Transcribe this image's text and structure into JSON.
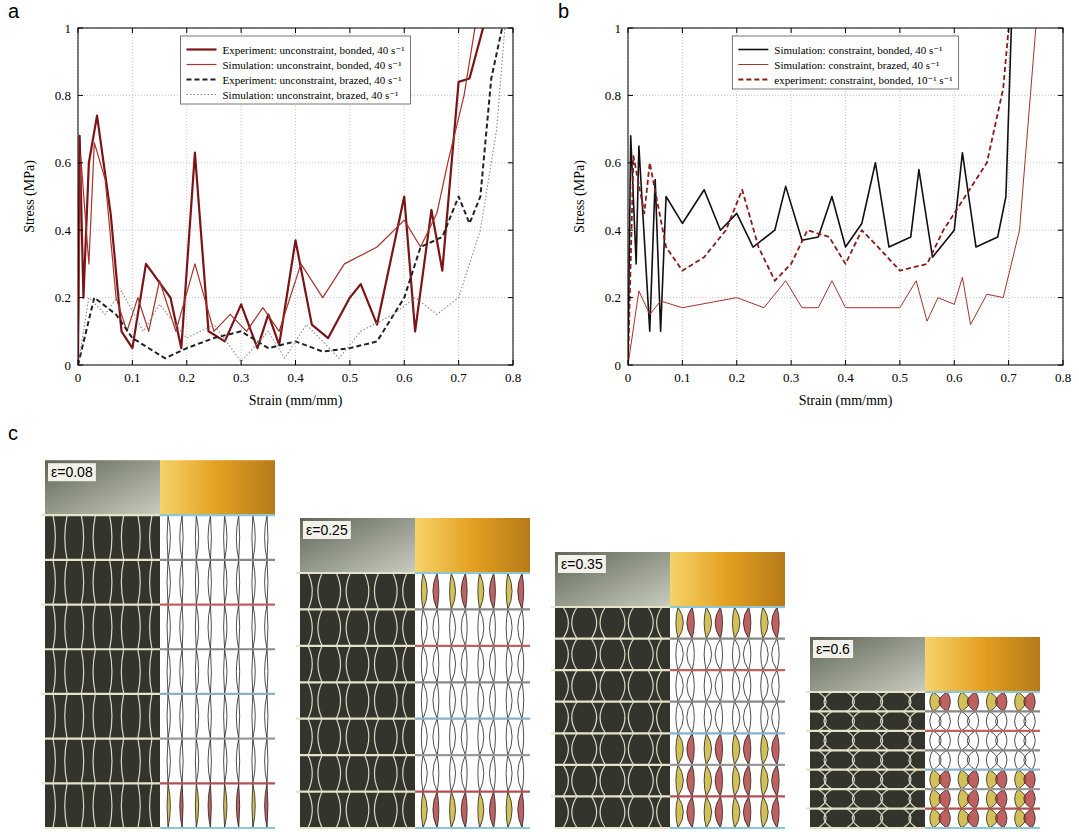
{
  "chart_data": [
    {
      "type": "line",
      "label": "a",
      "x_label": "Strain (mm/mm)",
      "y_label": "Stress (MPa)",
      "xlim": [
        0,
        0.8
      ],
      "ylim": [
        0,
        1
      ],
      "xticks": [
        0,
        0.1,
        0.2,
        0.3,
        0.4,
        0.5,
        0.6,
        0.7,
        0.8
      ],
      "yticks": [
        0,
        0.2,
        0.4,
        0.6,
        0.8,
        1
      ],
      "grid": true,
      "legend": "top",
      "series": [
        {
          "name": "Experiment: unconstraint, bonded, 40 s⁻¹",
          "color": "#7b1416",
          "line_style": "solid",
          "x": [
            0,
            0.003,
            0.01,
            0.02,
            0.035,
            0.06,
            0.08,
            0.1,
            0.125,
            0.17,
            0.19,
            0.215,
            0.24,
            0.27,
            0.3,
            0.33,
            0.35,
            0.37,
            0.4,
            0.43,
            0.46,
            0.5,
            0.52,
            0.55,
            0.6,
            0.62,
            0.65,
            0.67,
            0.7,
            0.72,
            0.745
          ],
          "values": [
            0,
            0.68,
            0.2,
            0.6,
            0.74,
            0.45,
            0.1,
            0.05,
            0.3,
            0.2,
            0.05,
            0.63,
            0.1,
            0.07,
            0.18,
            0.05,
            0.15,
            0.06,
            0.37,
            0.12,
            0.08,
            0.2,
            0.24,
            0.12,
            0.5,
            0.1,
            0.46,
            0.28,
            0.84,
            0.85,
            1.0
          ]
        },
        {
          "name": "Simulation: unconstraint, bonded, 40 s⁻¹",
          "color": "#a8312b",
          "line_style": "solid",
          "x": [
            0,
            0.005,
            0.02,
            0.03,
            0.05,
            0.07,
            0.09,
            0.11,
            0.13,
            0.15,
            0.18,
            0.215,
            0.25,
            0.28,
            0.31,
            0.34,
            0.37,
            0.41,
            0.45,
            0.49,
            0.55,
            0.6,
            0.63,
            0.66,
            0.68,
            0.71,
            0.73
          ],
          "values": [
            0,
            0.62,
            0.3,
            0.66,
            0.55,
            0.2,
            0.1,
            0.2,
            0.1,
            0.25,
            0.1,
            0.3,
            0.1,
            0.15,
            0.1,
            0.17,
            0.1,
            0.3,
            0.2,
            0.3,
            0.35,
            0.43,
            0.35,
            0.45,
            0.6,
            0.8,
            1.0
          ]
        },
        {
          "name": "Experiment: unconstraint, brazed, 40 s⁻¹",
          "color": "#222222",
          "line_style": "dashed",
          "x": [
            0,
            0.03,
            0.07,
            0.1,
            0.16,
            0.2,
            0.25,
            0.3,
            0.35,
            0.4,
            0.45,
            0.5,
            0.55,
            0.6,
            0.63,
            0.67,
            0.7,
            0.72,
            0.74,
            0.76,
            0.78
          ],
          "values": [
            0,
            0.2,
            0.15,
            0.08,
            0.02,
            0.05,
            0.08,
            0.1,
            0.05,
            0.07,
            0.04,
            0.05,
            0.07,
            0.2,
            0.35,
            0.38,
            0.5,
            0.42,
            0.5,
            0.85,
            1.0
          ]
        },
        {
          "name": "Simulation: unconstraint, brazed, 40 s⁻¹",
          "color": "#888888",
          "line_style": "dotted",
          "x": [
            0,
            0.02,
            0.05,
            0.08,
            0.12,
            0.15,
            0.2,
            0.25,
            0.3,
            0.35,
            0.38,
            0.42,
            0.48,
            0.52,
            0.58,
            0.62,
            0.66,
            0.7,
            0.74,
            0.77,
            0.785
          ],
          "values": [
            0,
            0.2,
            0.15,
            0.22,
            0.1,
            0.18,
            0.08,
            0.12,
            0.01,
            0.1,
            0.02,
            0.12,
            0.02,
            0.1,
            0.15,
            0.2,
            0.15,
            0.2,
            0.4,
            0.7,
            1.0
          ]
        }
      ]
    },
    {
      "type": "line",
      "label": "b",
      "x_label": "Strain (mm/mm)",
      "y_label": "Stress (MPa)",
      "xlim": [
        0,
        0.8
      ],
      "ylim": [
        0,
        1
      ],
      "xticks": [
        0,
        0.1,
        0.2,
        0.3,
        0.4,
        0.5,
        0.6,
        0.7,
        0.8
      ],
      "yticks": [
        0,
        0.2,
        0.4,
        0.6,
        0.8,
        1
      ],
      "grid": true,
      "legend": "top",
      "series": [
        {
          "name": "Simulation: constraint, bonded, 40 s⁻¹",
          "color": "#111111",
          "line_style": "solid",
          "x": [
            0,
            0.005,
            0.015,
            0.02,
            0.04,
            0.05,
            0.06,
            0.07,
            0.1,
            0.14,
            0.17,
            0.2,
            0.23,
            0.27,
            0.29,
            0.32,
            0.35,
            0.375,
            0.4,
            0.43,
            0.455,
            0.48,
            0.52,
            0.535,
            0.56,
            0.6,
            0.615,
            0.64,
            0.68,
            0.695,
            0.705
          ],
          "values": [
            0,
            0.68,
            0.3,
            0.65,
            0.1,
            0.55,
            0.1,
            0.5,
            0.42,
            0.52,
            0.4,
            0.45,
            0.35,
            0.4,
            0.53,
            0.37,
            0.38,
            0.5,
            0.35,
            0.42,
            0.6,
            0.35,
            0.38,
            0.58,
            0.32,
            0.4,
            0.63,
            0.35,
            0.38,
            0.5,
            1.0
          ]
        },
        {
          "name": "Simulation: constraint, brazed, 40 s⁻¹",
          "color": "#a8312b",
          "line_style": "solid",
          "x": [
            0,
            0.02,
            0.04,
            0.06,
            0.1,
            0.2,
            0.25,
            0.29,
            0.32,
            0.35,
            0.375,
            0.4,
            0.5,
            0.53,
            0.55,
            0.57,
            0.6,
            0.615,
            0.63,
            0.66,
            0.69,
            0.72,
            0.74,
            0.75
          ],
          "values": [
            0,
            0.22,
            0.15,
            0.19,
            0.17,
            0.2,
            0.17,
            0.25,
            0.17,
            0.17,
            0.25,
            0.17,
            0.17,
            0.25,
            0.13,
            0.2,
            0.18,
            0.26,
            0.12,
            0.21,
            0.2,
            0.4,
            0.8,
            1.0
          ]
        },
        {
          "name": "experiment: constraint, bonded, 10⁻¹ s⁻¹",
          "color": "#8b1a1a",
          "line_style": "dashed",
          "x": [
            0,
            0.01,
            0.03,
            0.04,
            0.07,
            0.1,
            0.14,
            0.18,
            0.21,
            0.24,
            0.27,
            0.3,
            0.33,
            0.37,
            0.4,
            0.43,
            0.46,
            0.5,
            0.55,
            0.58,
            0.62,
            0.66,
            0.69,
            0.7
          ],
          "values": [
            0,
            0.62,
            0.45,
            0.6,
            0.35,
            0.28,
            0.32,
            0.4,
            0.52,
            0.35,
            0.25,
            0.3,
            0.4,
            0.38,
            0.3,
            0.4,
            0.35,
            0.28,
            0.3,
            0.4,
            0.5,
            0.6,
            0.82,
            1.0
          ]
        }
      ]
    }
  ],
  "panel_c": {
    "label": "c",
    "frames": [
      {
        "label": "ε=0.08",
        "strain": 0.08
      },
      {
        "label": "ε=0.25",
        "strain": 0.25
      },
      {
        "label": "ε=0.35",
        "strain": 0.35
      },
      {
        "label": "ε=0.6",
        "strain": 0.6
      }
    ]
  }
}
